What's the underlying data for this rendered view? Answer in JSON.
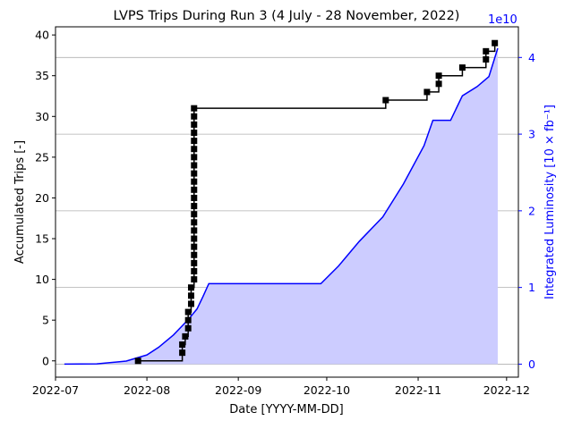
{
  "chart_data": {
    "type": "line",
    "title": "LVPS Trips During Run 3 (4 July - 28 November, 2022)",
    "xlabel": "Date [YYYY-MM-DD]",
    "ylabel": "Accumulated Trips [-]",
    "y2label": "Integrated Luminosity [10 × fb⁻¹]",
    "y2_offset_text": "1e10",
    "xlim": [
      "2022-07-01",
      "2022-12-05"
    ],
    "ylim": [
      -2,
      41
    ],
    "y2lim": [
      -0.17,
      4.4
    ],
    "y2_scale": "×1e10",
    "x_ticks": [
      "2022-07",
      "2022-08",
      "2022-09",
      "2022-10",
      "2022-11",
      "2022-12"
    ],
    "y_ticks": [
      0,
      5,
      10,
      15,
      20,
      25,
      30,
      35,
      40
    ],
    "y2_ticks": [
      0,
      1,
      2,
      3,
      4
    ],
    "grid": "horizontal lines at right-axis ticks",
    "colors": {
      "trips": "#000000",
      "luminosity": "#0000ff",
      "luminosity_fill": "#ccccff",
      "grid": "#b0b0b0",
      "y2_axis": "#0000ff"
    },
    "series": [
      {
        "axis": "left",
        "style": "step with square markers",
        "x": [
          "2022-07-29",
          "2022-08-13",
          "2022-08-14",
          "2022-08-15",
          "2022-08-16",
          "2022-08-17",
          "2022-10-21",
          "2022-11-04",
          "2022-11-08",
          "2022-11-16",
          "2022-11-24",
          "2022-11-27"
        ],
        "values": [
          0,
          2,
          3,
          6,
          9,
          31,
          32,
          33,
          35,
          36,
          38,
          39
        ]
      },
      {
        "axis": "right",
        "style": "line with filled area",
        "x": [
          "2022-07-04",
          "2022-07-15",
          "2022-07-25",
          "2022-08-01",
          "2022-08-05",
          "2022-08-10",
          "2022-08-15",
          "2022-08-18",
          "2022-08-20",
          "2022-08-22",
          "2022-09-15",
          "2022-09-29",
          "2022-10-05",
          "2022-10-12",
          "2022-10-20",
          "2022-10-27",
          "2022-11-03",
          "2022-11-06",
          "2022-11-12",
          "2022-11-16",
          "2022-11-21",
          "2022-11-25",
          "2022-11-28"
        ],
        "values": [
          0,
          0.003,
          0.04,
          0.12,
          0.22,
          0.38,
          0.58,
          0.72,
          0.88,
          1.05,
          1.05,
          1.05,
          1.28,
          1.6,
          1.92,
          2.35,
          2.85,
          3.18,
          3.18,
          3.5,
          3.62,
          3.75,
          4.12
        ]
      }
    ]
  }
}
